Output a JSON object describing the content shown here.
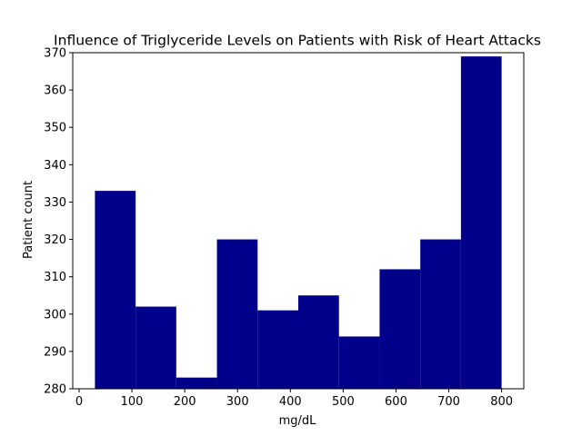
{
  "chart_data": {
    "type": "bar",
    "title": "Influence of Triglyceride Levels on Patients with Risk of Heart Attacks",
    "xlabel": "mg/dL",
    "ylabel": "Patient count",
    "bar_color": "#00008b",
    "xlim": [
      -12,
      842
    ],
    "ylim": [
      280,
      370
    ],
    "xticks": [
      0,
      100,
      200,
      300,
      400,
      500,
      600,
      700,
      800
    ],
    "yticks": [
      280,
      290,
      300,
      310,
      320,
      330,
      340,
      350,
      360,
      370
    ],
    "grid": false,
    "legend": "none",
    "bins": [
      {
        "x0": 30.0,
        "x1": 107.0,
        "count": 333
      },
      {
        "x0": 107.0,
        "x1": 184.0,
        "count": 302
      },
      {
        "x0": 184.0,
        "x1": 261.0,
        "count": 283
      },
      {
        "x0": 261.0,
        "x1": 338.0,
        "count": 320
      },
      {
        "x0": 338.0,
        "x1": 415.0,
        "count": 301
      },
      {
        "x0": 415.0,
        "x1": 492.0,
        "count": 305
      },
      {
        "x0": 492.0,
        "x1": 569.0,
        "count": 294
      },
      {
        "x0": 569.0,
        "x1": 646.0,
        "count": 312
      },
      {
        "x0": 646.0,
        "x1": 723.0,
        "count": 320
      },
      {
        "x0": 723.0,
        "x1": 800.0,
        "count": 369
      }
    ]
  }
}
